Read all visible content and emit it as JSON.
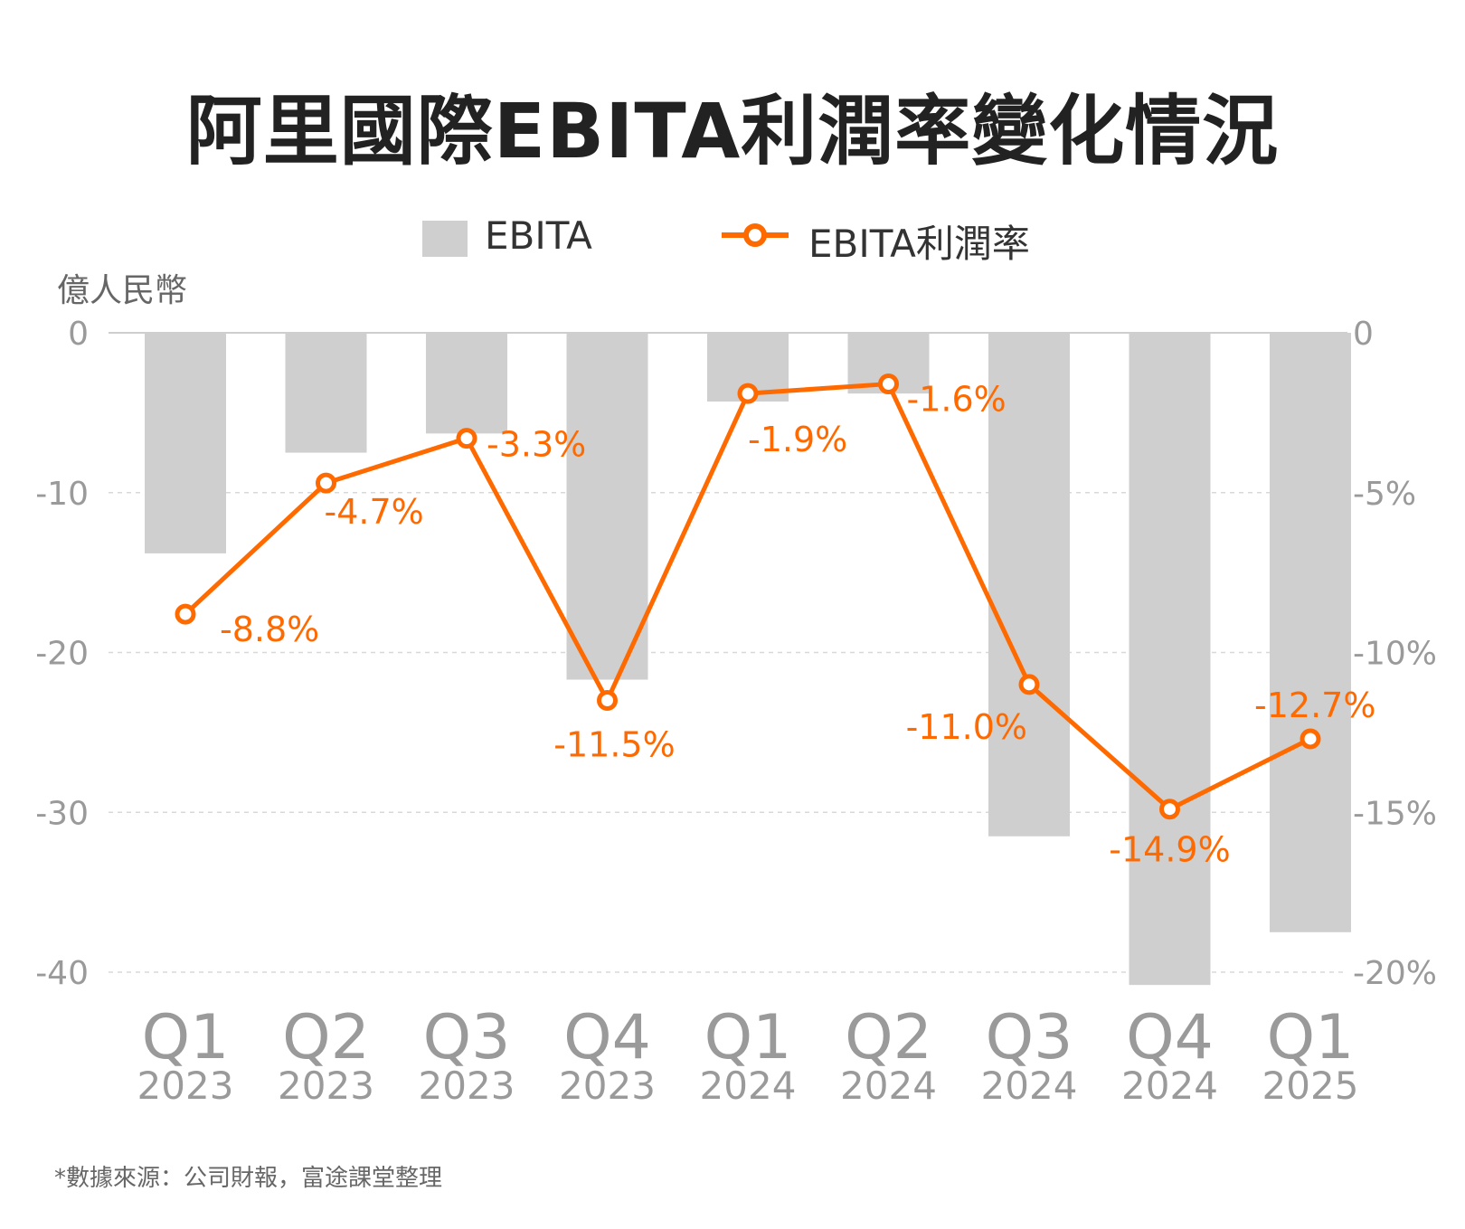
{
  "title": "阿里國際EBITA利潤率變化情況",
  "unit": "億人民幣",
  "source": "*數據來源：公司財報，富途課堂整理",
  "colors": {
    "bar": "#cfcfcf",
    "line": "#ff6a00",
    "axis": "#9a9a9a",
    "grid": "#d8d8d8"
  },
  "chart_data": {
    "type": "bar",
    "categories": [
      {
        "quarter": "Q1",
        "year": "2023"
      },
      {
        "quarter": "Q2",
        "year": "2023"
      },
      {
        "quarter": "Q3",
        "year": "2023"
      },
      {
        "quarter": "Q4",
        "year": "2023"
      },
      {
        "quarter": "Q1",
        "year": "2024"
      },
      {
        "quarter": "Q2",
        "year": "2024"
      },
      {
        "quarter": "Q3",
        "year": "2024"
      },
      {
        "quarter": "Q4",
        "year": "2024"
      },
      {
        "quarter": "Q1",
        "year": "2025"
      }
    ],
    "series": [
      {
        "name": "EBITA",
        "type": "bar",
        "axis": "left",
        "values": [
          -13.8,
          -7.5,
          -6.3,
          -21.7,
          -4.3,
          -3.8,
          -31.5,
          -40.8,
          -37.5
        ]
      },
      {
        "name": "EBITA利潤率",
        "type": "line",
        "axis": "right",
        "values": [
          -8.8,
          -4.7,
          -3.3,
          -11.5,
          -1.9,
          -1.6,
          -11.0,
          -14.9,
          -12.7
        ],
        "labels": [
          "-8.8%",
          "-4.7%",
          "-3.3%",
          "-11.5%",
          "-1.9%",
          "-1.6%",
          "-11.0%",
          "-14.9%",
          "-12.7%"
        ]
      }
    ],
    "left_axis": {
      "ticks": [
        "0",
        "-10",
        "-20",
        "-30",
        "-40"
      ],
      "range": [
        -40,
        0
      ]
    },
    "right_axis": {
      "ticks": [
        "0",
        "-5%",
        "-10%",
        "-15%",
        "-20%"
      ],
      "range": [
        -20,
        0
      ]
    },
    "grid": "dashed",
    "legend": "top-center"
  }
}
